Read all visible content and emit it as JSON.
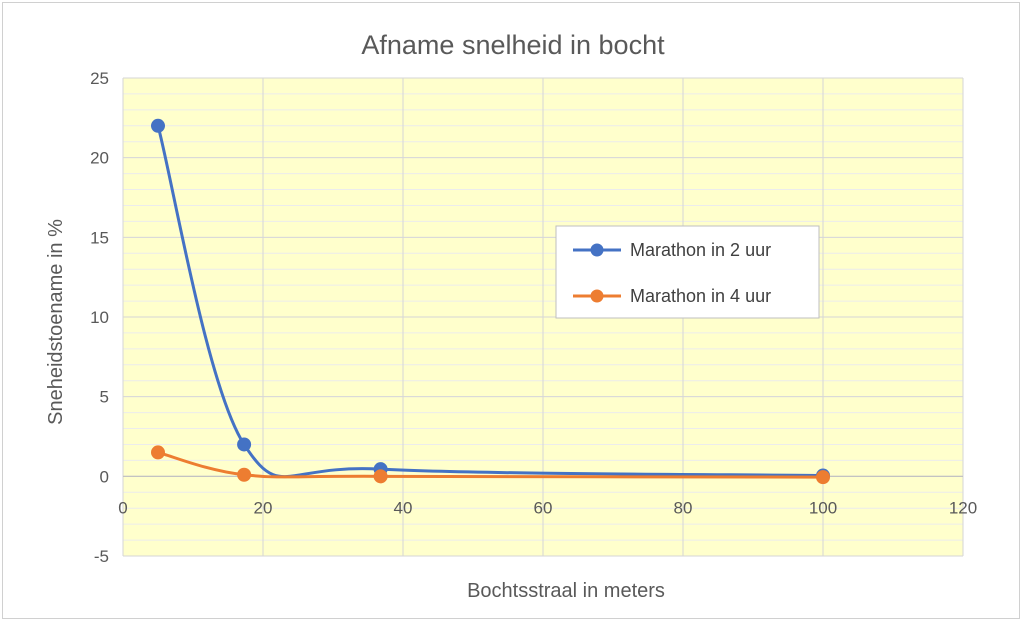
{
  "chart_data": {
    "type": "scatter",
    "title": "Afname snelheid  in bocht",
    "xlabel": "Bochtsstraal in meters",
    "ylabel": "Sneheidstoename in %",
    "xlim": [
      0,
      120
    ],
    "ylim": [
      -5,
      25
    ],
    "x_ticks": [
      0,
      20,
      40,
      60,
      80,
      100,
      120
    ],
    "y_ticks": [
      -5,
      0,
      5,
      10,
      15,
      20,
      25
    ],
    "x_tick_labels": [
      "0",
      "20",
      "40",
      "60",
      "80",
      "100",
      "120"
    ],
    "y_tick_labels": [
      "-5",
      "0",
      "5",
      "10",
      "15",
      "20",
      "25"
    ],
    "grid": true,
    "smooth_lines": true,
    "plot_background": "#ffffcc",
    "legend_position": "right",
    "series": [
      {
        "name": "Marathon in 2 uur",
        "color": "#4472c4",
        "x": [
          5,
          17.3,
          36.8,
          100
        ],
        "y": [
          22,
          2,
          0.45,
          0.05
        ]
      },
      {
        "name": "Marathon in 4 uur",
        "color": "#ed7d31",
        "x": [
          5,
          17.3,
          36.8,
          100
        ],
        "y": [
          1.5,
          0.1,
          0,
          -0.05
        ]
      }
    ]
  }
}
